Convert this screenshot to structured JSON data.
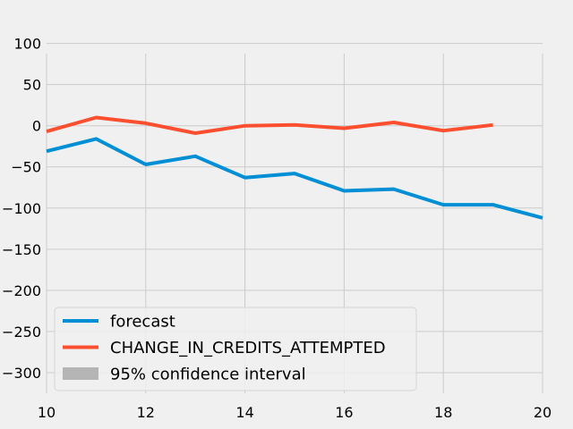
{
  "chart_data": {
    "type": "line",
    "title": "",
    "xlabel": "",
    "ylabel": "",
    "xlim": [
      10,
      20
    ],
    "ylim": [
      -325,
      105
    ],
    "xticks": [
      10,
      12,
      14,
      16,
      18,
      20
    ],
    "yticks": [
      100,
      50,
      0,
      -50,
      -100,
      -150,
      -200,
      -250,
      -300
    ],
    "grid": true,
    "legend_position": "lower-left",
    "series": [
      {
        "name": "forecast",
        "color": "#008fd5",
        "x": [
          10,
          11,
          12,
          13,
          14,
          15,
          16,
          17,
          18,
          19,
          20
        ],
        "y": [
          -31,
          -16,
          -47,
          -37,
          -63,
          -58,
          -79,
          -77,
          -96,
          -96,
          -112
        ]
      },
      {
        "name": "CHANGE_IN_CREDITS_ATTEMPTED",
        "color": "#fc4f30",
        "x": [
          10,
          11,
          12,
          13,
          14,
          15,
          16,
          17,
          18,
          19
        ],
        "y": [
          -7,
          10,
          3,
          -9,
          0,
          1,
          -3,
          4,
          -6,
          1
        ]
      }
    ],
    "legend": [
      {
        "label": "forecast",
        "kind": "line",
        "color": "#008fd5"
      },
      {
        "label": "CHANGE_IN_CREDITS_ATTEMPTED",
        "kind": "line",
        "color": "#fc4f30"
      },
      {
        "label": "95% confidence interval",
        "kind": "patch",
        "color": "#b5b5b5"
      }
    ]
  }
}
